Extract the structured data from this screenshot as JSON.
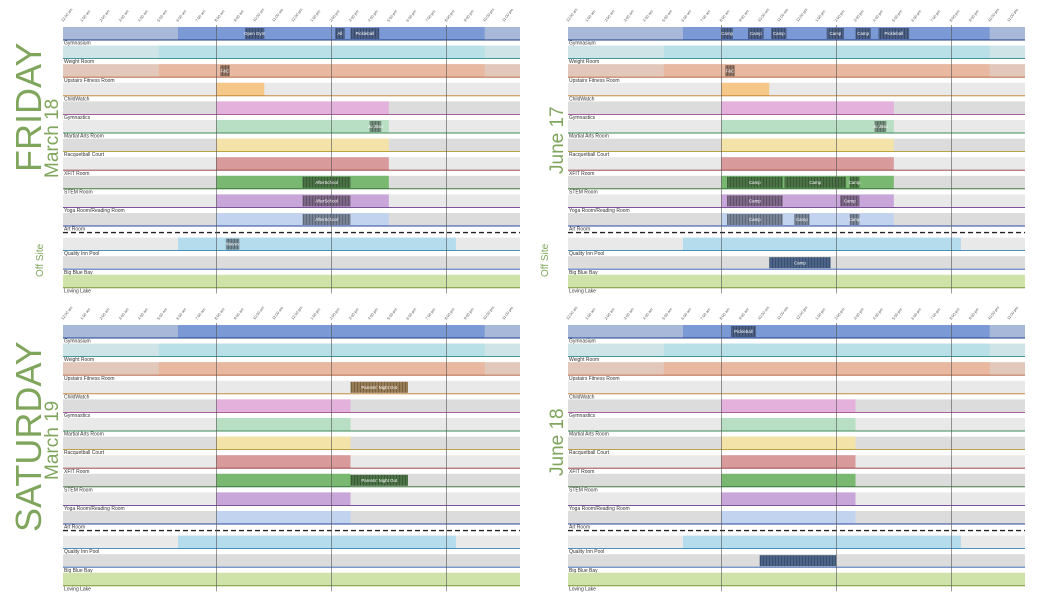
{
  "colors": {
    "day_label": "#7fa65c",
    "row_gray": "#dcdcdc",
    "row_stripe": "#e9e9e9"
  },
  "time_ticks": [
    "12:00 am",
    "1:00 am",
    "2:00 am",
    "3:00 am",
    "4:00 am",
    "5:00 am",
    "6:00 am",
    "7:00 am",
    "8:00 am",
    "9:00 am",
    "10:00 am",
    "11:00 am",
    "12:00 pm",
    "1:00 pm",
    "2:00 pm",
    "3:00 pm",
    "4:00 pm",
    "5:00 pm",
    "6:00 pm",
    "7:00 pm",
    "8:00 pm",
    "9:00 pm",
    "10:00 pm",
    "11:00 pm",
    "12:00 am"
  ],
  "off_site_label": "Off Site",
  "rooms": [
    {
      "name": "Gymnasium",
      "color": "#7b9ad6",
      "line": "#1f3f8a"
    },
    {
      "name": "Weight Room",
      "color": "#b8e0e6",
      "line": "#2f8c95"
    },
    {
      "name": "Upstairs Fitness Room",
      "color": "#e8b8a0",
      "line": "#b05a35"
    },
    {
      "name": "ChildWatch",
      "color": "#f5c88a",
      "line": "#c07e28"
    },
    {
      "name": "Gymnastics",
      "color": "#e4b0dc",
      "line": "#9a4a92"
    },
    {
      "name": "Martial Arts Room",
      "color": "#b8dfc4",
      "line": "#3e8a56"
    },
    {
      "name": "Racquetball Court",
      "color": "#f3e3a8",
      "line": "#b59a32"
    },
    {
      "name": "XFIT Room",
      "color": "#d89a9a",
      "line": "#8e3535"
    },
    {
      "name": "STEM Room",
      "color": "#78b870",
      "line": "#2e6a2c"
    },
    {
      "name": "Yoga Room/Reading Room",
      "color": "#c9a6d9",
      "line": "#6a3a8a"
    },
    {
      "name": "Art Room",
      "color": "#c2d3f0",
      "line": "#2a4a9a"
    }
  ],
  "offsite_rooms": [
    {
      "name": "Quality Inn Pool",
      "color": "#b5dced",
      "line": "#3a86b0"
    },
    {
      "name": "Big Blue Bay",
      "color": "#7aa2dc",
      "line": "#2a5ab0"
    },
    {
      "name": "Loving Lake",
      "color": "#cfe3a8",
      "line": "#6a8a2a"
    }
  ],
  "panels": [
    {
      "id": "friday",
      "day": "FRIDAY",
      "date": "March 18",
      "chart_data": {
        "type": "timeline",
        "rows": [
          {
            "room": "Gymnasium",
            "open": [
              6,
              22
            ],
            "events": [
              {
                "label": "Open Gym",
                "start": 9.5,
                "end": 10.5
              },
              {
                "label": "All",
                "start": 14.2,
                "end": 14.7
              },
              {
                "label": "Pickleball",
                "start": 15,
                "end": 16.5
              }
            ]
          },
          {
            "room": "Weight Room",
            "open": [
              5,
              22
            ],
            "events": []
          },
          {
            "room": "Upstairs Fitness Room",
            "open": [
              5,
              22
            ],
            "events": [
              {
                "label": "F&C",
                "start": 8.2,
                "end": 8.7
              }
            ]
          },
          {
            "room": "ChildWatch",
            "open": [
              8,
              10.5
            ],
            "events": []
          },
          {
            "room": "Gymnastics",
            "open": [
              8,
              17
            ],
            "events": []
          },
          {
            "room": "Martial Arts Room",
            "open": [
              8,
              17
            ],
            "events": [
              {
                "label": "Ju Jitsu",
                "start": 16,
                "end": 16.6
              }
            ]
          },
          {
            "room": "Racquetball Court",
            "open": [
              8,
              17
            ],
            "events": []
          },
          {
            "room": "XFIT Room",
            "open": [
              8,
              17
            ],
            "events": []
          },
          {
            "room": "STEM Room",
            "open": [
              8,
              17
            ],
            "events": [
              {
                "label": "AfterSchool",
                "start": 12.5,
                "end": 15
              }
            ]
          },
          {
            "room": "Yoga Room/Reading Room",
            "open": [
              8,
              17
            ],
            "events": [
              {
                "label": "AfterSchool",
                "start": 12.5,
                "end": 15
              }
            ]
          },
          {
            "room": "Art Room",
            "open": [
              8,
              17
            ],
            "events": [
              {
                "label": "AfterSchool",
                "start": 12.5,
                "end": 15
              }
            ]
          },
          {
            "room": "Quality Inn Pool",
            "open": [
              6,
              20.5
            ],
            "events": [
              {
                "label": "Waves",
                "start": 8.5,
                "end": 9.2
              }
            ]
          },
          {
            "room": "Big Blue Bay",
            "open": [],
            "events": []
          },
          {
            "room": "Loving Lake",
            "open": [],
            "events": []
          }
        ]
      }
    },
    {
      "id": "june17",
      "day": "",
      "date": "June 17",
      "chart_data": {
        "type": "timeline",
        "rows": [
          {
            "room": "Gymnasium",
            "open": [
              6,
              22
            ],
            "events": [
              {
                "label": "Camp",
                "start": 8,
                "end": 8.6
              },
              {
                "label": "Camp",
                "start": 9.4,
                "end": 10.2
              },
              {
                "label": "Camp",
                "start": 10.6,
                "end": 11.4
              },
              {
                "label": "Camp",
                "start": 13.5,
                "end": 14.4
              },
              {
                "label": "Camp",
                "start": 15,
                "end": 15.8
              },
              {
                "label": "Pickleball",
                "start": 16.2,
                "end": 17.8
              }
            ]
          },
          {
            "room": "Weight Room",
            "open": [
              5,
              22
            ],
            "events": []
          },
          {
            "room": "Upstairs Fitness Room",
            "open": [
              5,
              22
            ],
            "events": [
              {
                "label": "F&C",
                "start": 8.2,
                "end": 8.7
              }
            ]
          },
          {
            "room": "ChildWatch",
            "open": [
              8,
              10.5
            ],
            "events": []
          },
          {
            "room": "Gymnastics",
            "open": [
              8,
              17
            ],
            "events": []
          },
          {
            "room": "Martial Arts Room",
            "open": [
              8,
              17
            ],
            "events": [
              {
                "label": "Ju Jitsu",
                "start": 16,
                "end": 16.6
              }
            ]
          },
          {
            "room": "Racquetball Court",
            "open": [
              8,
              17
            ],
            "events": []
          },
          {
            "room": "XFIT Room",
            "open": [
              8,
              17
            ],
            "events": []
          },
          {
            "room": "STEM Room",
            "open": [
              8,
              17
            ],
            "events": [
              {
                "label": "Camp",
                "start": 8.3,
                "end": 11.2
              },
              {
                "label": "Camp",
                "start": 11.3,
                "end": 14.5
              },
              {
                "label": "Camp",
                "start": 14.7,
                "end": 15.2
              }
            ]
          },
          {
            "room": "Yoga Room/Reading Room",
            "open": [
              8,
              17
            ],
            "events": [
              {
                "label": "Camp",
                "start": 8.3,
                "end": 11.2
              },
              {
                "label": "Camp",
                "start": 14.2,
                "end": 15.2
              }
            ]
          },
          {
            "room": "Art Room",
            "open": [
              8,
              17
            ],
            "events": [
              {
                "label": "Camp",
                "start": 8.3,
                "end": 11.2
              },
              {
                "label": "Camp",
                "start": 11.8,
                "end": 12.6
              },
              {
                "label": "Camp",
                "start": 14.7,
                "end": 15.2
              }
            ]
          },
          {
            "room": "Quality Inn Pool",
            "open": [
              6,
              20.5
            ],
            "events": []
          },
          {
            "room": "Big Blue Bay",
            "open": [],
            "events": [
              {
                "label": "Camp",
                "start": 10.5,
                "end": 13.7
              }
            ]
          },
          {
            "room": "Loving Lake",
            "open": [],
            "events": []
          }
        ]
      }
    },
    {
      "id": "saturday",
      "day": "SATURDAY",
      "date": "March 19",
      "chart_data": {
        "type": "timeline",
        "rows": [
          {
            "room": "Gymnasium",
            "open": [
              6,
              22
            ],
            "events": []
          },
          {
            "room": "Weight Room",
            "open": [
              5,
              22
            ],
            "events": []
          },
          {
            "room": "Upstairs Fitness Room",
            "open": [
              5,
              22
            ],
            "events": []
          },
          {
            "room": "ChildWatch",
            "open": [],
            "events": [
              {
                "label": "Parents' Night Out",
                "start": 15,
                "end": 18
              }
            ]
          },
          {
            "room": "Gymnastics",
            "open": [
              8,
              15
            ],
            "events": []
          },
          {
            "room": "Martial Arts Room",
            "open": [
              8,
              15
            ],
            "events": []
          },
          {
            "room": "Racquetball Court",
            "open": [
              8,
              15
            ],
            "events": []
          },
          {
            "room": "XFIT Room",
            "open": [
              8,
              15
            ],
            "events": []
          },
          {
            "room": "STEM Room",
            "open": [
              8,
              15
            ],
            "events": [
              {
                "label": "Parents' Night Out",
                "start": 15,
                "end": 18
              }
            ]
          },
          {
            "room": "Yoga Room/Reading Room",
            "open": [
              8,
              15
            ],
            "events": []
          },
          {
            "room": "Art Room",
            "open": [
              8,
              15
            ],
            "events": []
          },
          {
            "room": "Quality Inn Pool",
            "open": [
              6,
              20.5
            ],
            "events": []
          },
          {
            "room": "Big Blue Bay",
            "open": [],
            "events": []
          },
          {
            "room": "Loving Lake",
            "open": [],
            "events": []
          }
        ]
      }
    },
    {
      "id": "june18",
      "day": "",
      "date": "June 18",
      "chart_data": {
        "type": "timeline",
        "rows": [
          {
            "room": "Gymnasium",
            "open": [
              6,
              22
            ],
            "events": [
              {
                "label": "Pickleball",
                "start": 8.5,
                "end": 9.8
              }
            ]
          },
          {
            "room": "Weight Room",
            "open": [
              5,
              22
            ],
            "events": []
          },
          {
            "room": "Upstairs Fitness Room",
            "open": [
              5,
              22
            ],
            "events": []
          },
          {
            "room": "ChildWatch",
            "open": [],
            "events": []
          },
          {
            "room": "Gymnastics",
            "open": [
              8,
              15
            ],
            "events": []
          },
          {
            "room": "Martial Arts Room",
            "open": [
              8,
              15
            ],
            "events": []
          },
          {
            "room": "Racquetball Court",
            "open": [
              8,
              15
            ],
            "events": []
          },
          {
            "room": "XFIT Room",
            "open": [
              8,
              15
            ],
            "events": []
          },
          {
            "room": "STEM Room",
            "open": [
              8,
              15
            ],
            "events": []
          },
          {
            "room": "Yoga Room/Reading Room",
            "open": [
              8,
              15
            ],
            "events": []
          },
          {
            "room": "Art Room",
            "open": [
              8,
              15
            ],
            "events": []
          },
          {
            "room": "Quality Inn Pool",
            "open": [
              6,
              20.5
            ],
            "events": []
          },
          {
            "room": "Big Blue Bay",
            "open": [],
            "events": [
              {
                "label": "",
                "start": 10,
                "end": 14
              }
            ]
          },
          {
            "room": "Loving Lake",
            "open": [],
            "events": []
          }
        ]
      }
    }
  ]
}
